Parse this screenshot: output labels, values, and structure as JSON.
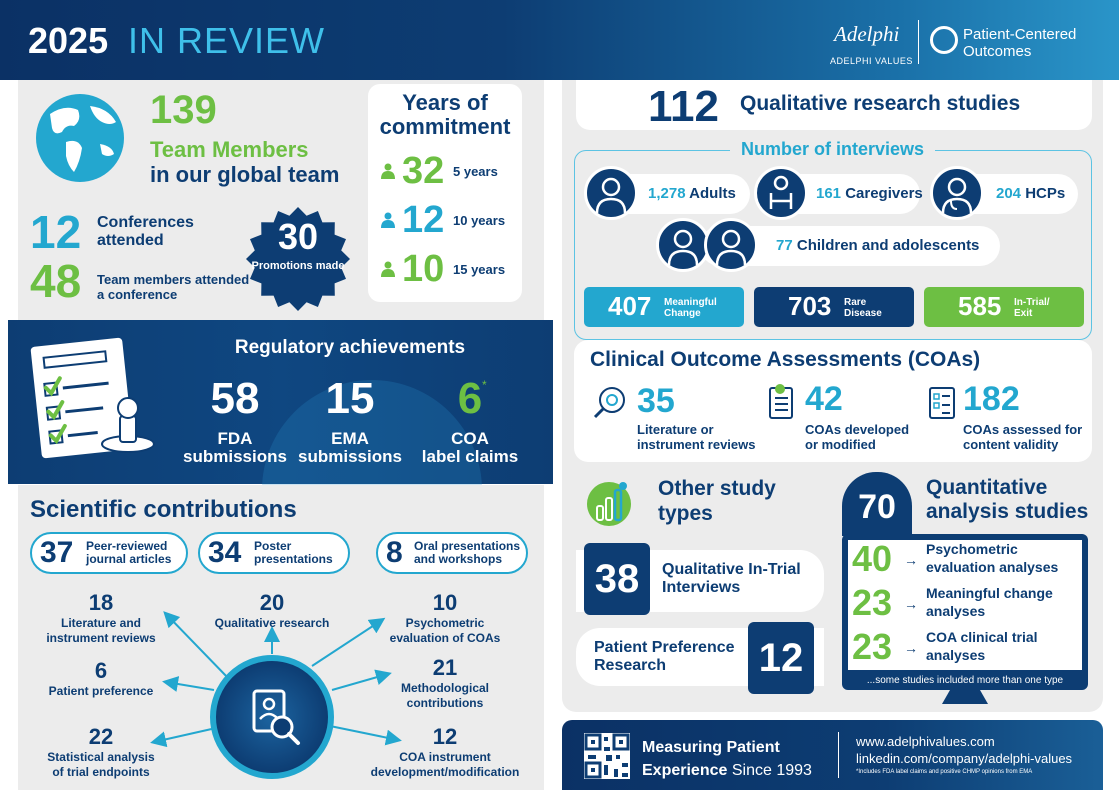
{
  "header": {
    "year": "2025",
    "title_rest": "IN REVIEW",
    "brand": "Adelphi",
    "brand_sub": "ADELPHI VALUES",
    "pco_line1": "Patient-Centered",
    "pco_line2": "Outcomes"
  },
  "team": {
    "members_num": "139",
    "members_label": "Team Members",
    "members_sub": "in our global team",
    "conf_num": "12",
    "conf_label": "Conferences attended",
    "attend_num": "48",
    "attend_label": "Team members attended a conference",
    "promo_num": "30",
    "promo_label": "Promotions made"
  },
  "commitment": {
    "title": "Years of commitment",
    "rows": [
      {
        "num": "32",
        "label": "5 years",
        "color": "#6dbf43"
      },
      {
        "num": "12",
        "label": "10 years",
        "color": "#23a7cf"
      },
      {
        "num": "10",
        "label": "15 years",
        "color": "#6dbf43"
      }
    ]
  },
  "regulatory": {
    "title": "Regulatory achievements",
    "items": [
      {
        "num": "58",
        "label1": "FDA",
        "label2": "submissions"
      },
      {
        "num": "15",
        "label1": "EMA",
        "label2": "submissions"
      },
      {
        "num": "6",
        "label1": "COA",
        "label2": "label claims"
      }
    ],
    "asterisk": "*"
  },
  "scientific": {
    "title": "Scientific contributions",
    "pills": [
      {
        "num": "37",
        "label": "Peer-reviewed journal articles"
      },
      {
        "num": "34",
        "label": "Poster presentations"
      },
      {
        "num": "8",
        "label": "Oral presentations and workshops"
      }
    ],
    "rays": [
      {
        "num": "18",
        "label": "Literature and instrument reviews"
      },
      {
        "num": "20",
        "label": "Qualitative research"
      },
      {
        "num": "10",
        "label": "Psychometric evaluation of COAs"
      },
      {
        "num": "6",
        "label": "Patient preference"
      },
      {
        "num": "21",
        "label": "Methodological contributions"
      },
      {
        "num": "22",
        "label": "Statistical analysis of trial endpoints"
      },
      {
        "num": "12",
        "label": "COA instrument development/modification"
      }
    ]
  },
  "qualitative": {
    "num": "112",
    "label": "Qualitative research studies"
  },
  "interviews": {
    "title": "Number of interviews",
    "groups": [
      {
        "num": "1,278",
        "label": "Adults"
      },
      {
        "num": "161",
        "label": "Caregivers"
      },
      {
        "num": "204",
        "label": "HCPs"
      },
      {
        "num": "77",
        "label": "Children and adolescents"
      }
    ],
    "boxes": [
      {
        "num": "407",
        "label": "Meaningful Change",
        "color": "#23a7cf"
      },
      {
        "num": "703",
        "label": "Rare Disease",
        "color": "#0d3d73"
      },
      {
        "num": "585",
        "label": "In-Trial/ Exit",
        "color": "#6dbf43"
      }
    ]
  },
  "coa": {
    "title": "Clinical Outcome Assessments (COAs)",
    "items": [
      {
        "num": "35",
        "label": "Literature or instrument reviews"
      },
      {
        "num": "42",
        "label": "COAs developed or modified"
      },
      {
        "num": "182",
        "label": "COAs assessed for content validity"
      }
    ]
  },
  "other": {
    "title": "Other study types",
    "items": [
      {
        "num": "38",
        "label": "Qualitative In-Trial Interviews"
      },
      {
        "num": "12",
        "label": "Patient Preference Research"
      }
    ]
  },
  "quantitative": {
    "num": "70",
    "title": "Quantitative analysis studies",
    "rows": [
      {
        "num": "40",
        "label": "Psychometric evaluation analyses"
      },
      {
        "num": "23",
        "label": "Meaningful change analyses"
      },
      {
        "num": "23",
        "label": "COA clinical trial analyses"
      }
    ],
    "note": "...some studies included more than one type"
  },
  "footer": {
    "line1": "Measuring Patient",
    "line2_bold": "Experience",
    "line2_rest": "Since 1993",
    "url1": "www.adelphivalues.com",
    "url2": "linkedin.com/company/adelphi-values",
    "note": "*Includes FDA label claims and positive CHMP opinions from EMA"
  }
}
